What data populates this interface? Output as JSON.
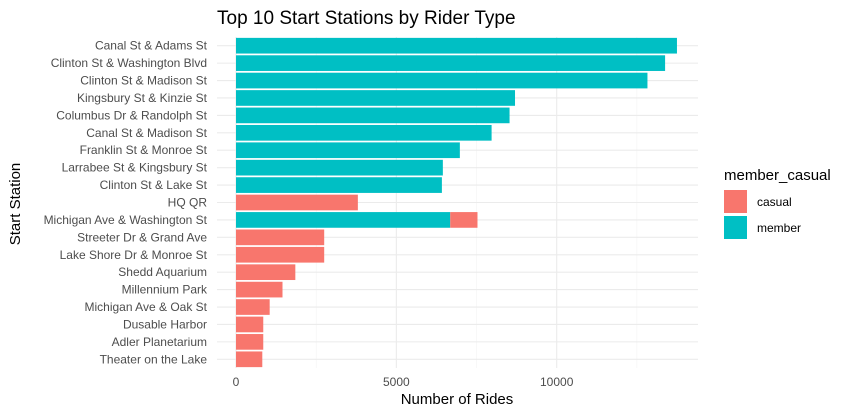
{
  "chart_data": {
    "type": "bar",
    "orientation": "horizontal",
    "stacked": true,
    "title": "Top 10 Start Stations by Rider Type",
    "xlabel": "Number of Rides",
    "ylabel": "Start Station",
    "xlim": [
      0,
      14000
    ],
    "xticks": [
      0,
      5000,
      10000
    ],
    "grid": true,
    "legend": {
      "title": "member_casual",
      "position": "right"
    },
    "categories": [
      "Canal St & Adams St",
      "Clinton St & Washington Blvd",
      "Clinton St & Madison St",
      "Kingsbury St & Kinzie St",
      "Columbus Dr & Randolph St",
      "Canal St & Madison St",
      "Franklin St & Monroe St",
      "Larrabee St & Kingsbury St",
      "Clinton St & Lake St",
      "HQ QR",
      "Michigan Ave & Washington St",
      "Streeter Dr & Grand Ave",
      "Lake Shore Dr & Monroe St",
      "Shedd Aquarium",
      "Millennium Park",
      "Michigan Ave & Oak St",
      "Dusable Harbor",
      "Adler Planetarium",
      "Theater on the Lake"
    ],
    "series": [
      {
        "name": "casual",
        "color": "#F8766D",
        "values": [
          0,
          0,
          0,
          0,
          0,
          0,
          0,
          0,
          0,
          3800,
          850,
          2750,
          2750,
          1850,
          1450,
          1050,
          850,
          850,
          820
        ]
      },
      {
        "name": "member",
        "color": "#00BFC4",
        "values": [
          13750,
          13380,
          12830,
          8700,
          8530,
          7970,
          6980,
          6450,
          6420,
          0,
          6680,
          0,
          0,
          0,
          0,
          0,
          0,
          0,
          0
        ]
      }
    ]
  }
}
